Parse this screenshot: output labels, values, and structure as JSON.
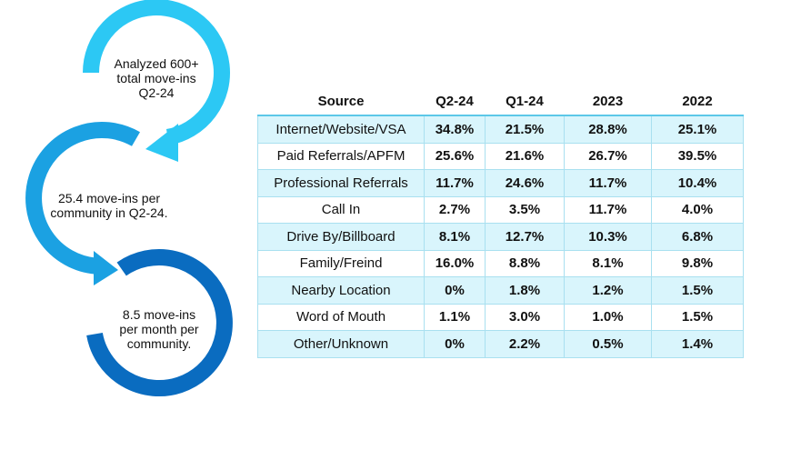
{
  "callouts": [
    [
      "Analyzed 600+",
      "total move-ins",
      "Q2-24"
    ],
    [
      "25.4 move-ins per",
      "community in Q2-24."
    ],
    [
      "8.5 move-ins",
      "per month per",
      "community."
    ]
  ],
  "table": {
    "header": [
      "Source",
      "Q2-24",
      "Q1-24",
      "2023",
      "2022"
    ],
    "rows": [
      [
        "Internet/Website/VSA",
        "34.8%",
        "21.5%",
        "28.8%",
        "25.1%"
      ],
      [
        "Paid Referrals/APFM",
        "25.6%",
        "21.6%",
        "26.7%",
        "39.5%"
      ],
      [
        "Professional Referrals",
        "11.7%",
        "24.6%",
        "11.7%",
        "10.4%"
      ],
      [
        "Call In",
        "2.7%",
        "3.5%",
        "11.7%",
        "4.0%"
      ],
      [
        "Drive By/Billboard",
        "8.1%",
        "12.7%",
        "10.3%",
        "6.8%"
      ],
      [
        "Family/Freind",
        "16.0%",
        "8.8%",
        "8.1%",
        "9.8%"
      ],
      [
        "Nearby Location",
        "0%",
        "1.8%",
        "1.2%",
        "1.5%"
      ],
      [
        "Word of Mouth",
        "1.1%",
        "3.0%",
        "1.0%",
        "1.5%"
      ],
      [
        "Other/Unknown",
        "0%",
        "2.2%",
        "0.5%",
        "1.4%"
      ]
    ]
  }
}
